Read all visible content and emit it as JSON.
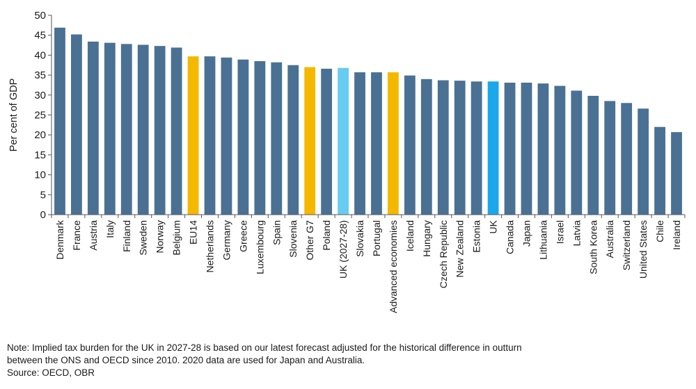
{
  "chart_data": {
    "type": "bar",
    "ylabel": "Per cent of GDP",
    "xlabel": "",
    "ylim": [
      0,
      50
    ],
    "yticks": [
      0,
      5,
      10,
      15,
      20,
      25,
      30,
      35,
      40,
      45,
      50
    ],
    "grid": false,
    "categories": [
      "Denmark",
      "France",
      "Austria",
      "Italy",
      "Finland",
      "Sweden",
      "Norway",
      "Belgium",
      "EU14",
      "Netherlands",
      "Germany",
      "Greece",
      "Luxembourg",
      "Spain",
      "Slovenia",
      "Other G7",
      "Poland",
      "UK (2027-28)",
      "Slovakia",
      "Portugal",
      "Advanced economies",
      "Iceland",
      "Hungary",
      "Czech Republic",
      "New Zealand",
      "Estonia",
      "UK",
      "Canada",
      "Japan",
      "Lithuania",
      "Israel",
      "Latvia",
      "South Korea",
      "Australia",
      "Switzerland",
      "United States",
      "Chile",
      "Ireland"
    ],
    "values": [
      46.9,
      45.2,
      43.4,
      43.1,
      42.8,
      42.6,
      42.3,
      41.9,
      39.7,
      39.7,
      39.4,
      38.9,
      38.5,
      38.2,
      37.5,
      37.0,
      36.6,
      36.8,
      35.7,
      35.7,
      35.7,
      34.9,
      34.0,
      33.7,
      33.6,
      33.4,
      33.4,
      33.1,
      33.1,
      32.9,
      32.3,
      31.1,
      29.8,
      28.5,
      28.0,
      26.6,
      22.0,
      20.7
    ],
    "colors": [
      "#4a7193",
      "#4a7193",
      "#4a7193",
      "#4a7193",
      "#4a7193",
      "#4a7193",
      "#4a7193",
      "#4a7193",
      "#f5b800",
      "#4a7193",
      "#4a7193",
      "#4a7193",
      "#4a7193",
      "#4a7193",
      "#4a7193",
      "#f5b800",
      "#4a7193",
      "#66ccf2",
      "#4a7193",
      "#4a7193",
      "#f5b800",
      "#4a7193",
      "#4a7193",
      "#4a7193",
      "#4a7193",
      "#4a7193",
      "#1aa8ea",
      "#4a7193",
      "#4a7193",
      "#4a7193",
      "#4a7193",
      "#4a7193",
      "#4a7193",
      "#4a7193",
      "#4a7193",
      "#4a7193",
      "#4a7193",
      "#4a7193"
    ]
  },
  "notes": {
    "line1": "Note: Implied tax burden for the UK in 2027-28 is based on our latest forecast adjusted for the historical difference in outturn",
    "line2": "between the ONS and OECD since 2010. 2020 data are used for Japan and Australia.",
    "source": "Source: OECD, OBR"
  }
}
